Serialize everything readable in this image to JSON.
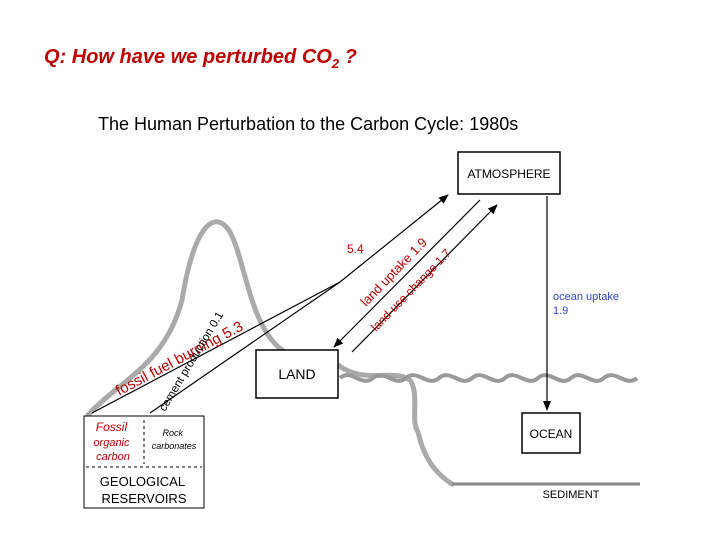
{
  "question": {
    "prefix": "Q:  How have we perturbed CO",
    "subscript": "2",
    "suffix": " ?"
  },
  "subtitle": "The Human Perturbation to the Carbon Cycle:  1980s",
  "boxes": {
    "atmosphere": "ATMOSPHERE",
    "land": "LAND",
    "ocean": "OCEAN",
    "sediment": "SEDIMENT"
  },
  "reservoir": {
    "fossil": [
      "Fossil",
      "organic",
      "carbon"
    ],
    "rock": [
      "Rock",
      "carbonates"
    ],
    "geological": [
      "GEOLOGICAL",
      "RESERVOIRS"
    ]
  },
  "fluxes": {
    "total_value": "5.4",
    "fossil_fuel": "fossil fuel burning 5.3",
    "cement": "cement production 0.1",
    "land_uptake": "land uptake 1.9",
    "land_use": "land-use change 1.7",
    "ocean_uptake_label": "ocean uptake",
    "ocean_uptake_value": "1.9"
  },
  "colors": {
    "flux_red": "#c00000",
    "flux_blue": "#3344cc",
    "terrain_gray": "#aaaaaa"
  }
}
